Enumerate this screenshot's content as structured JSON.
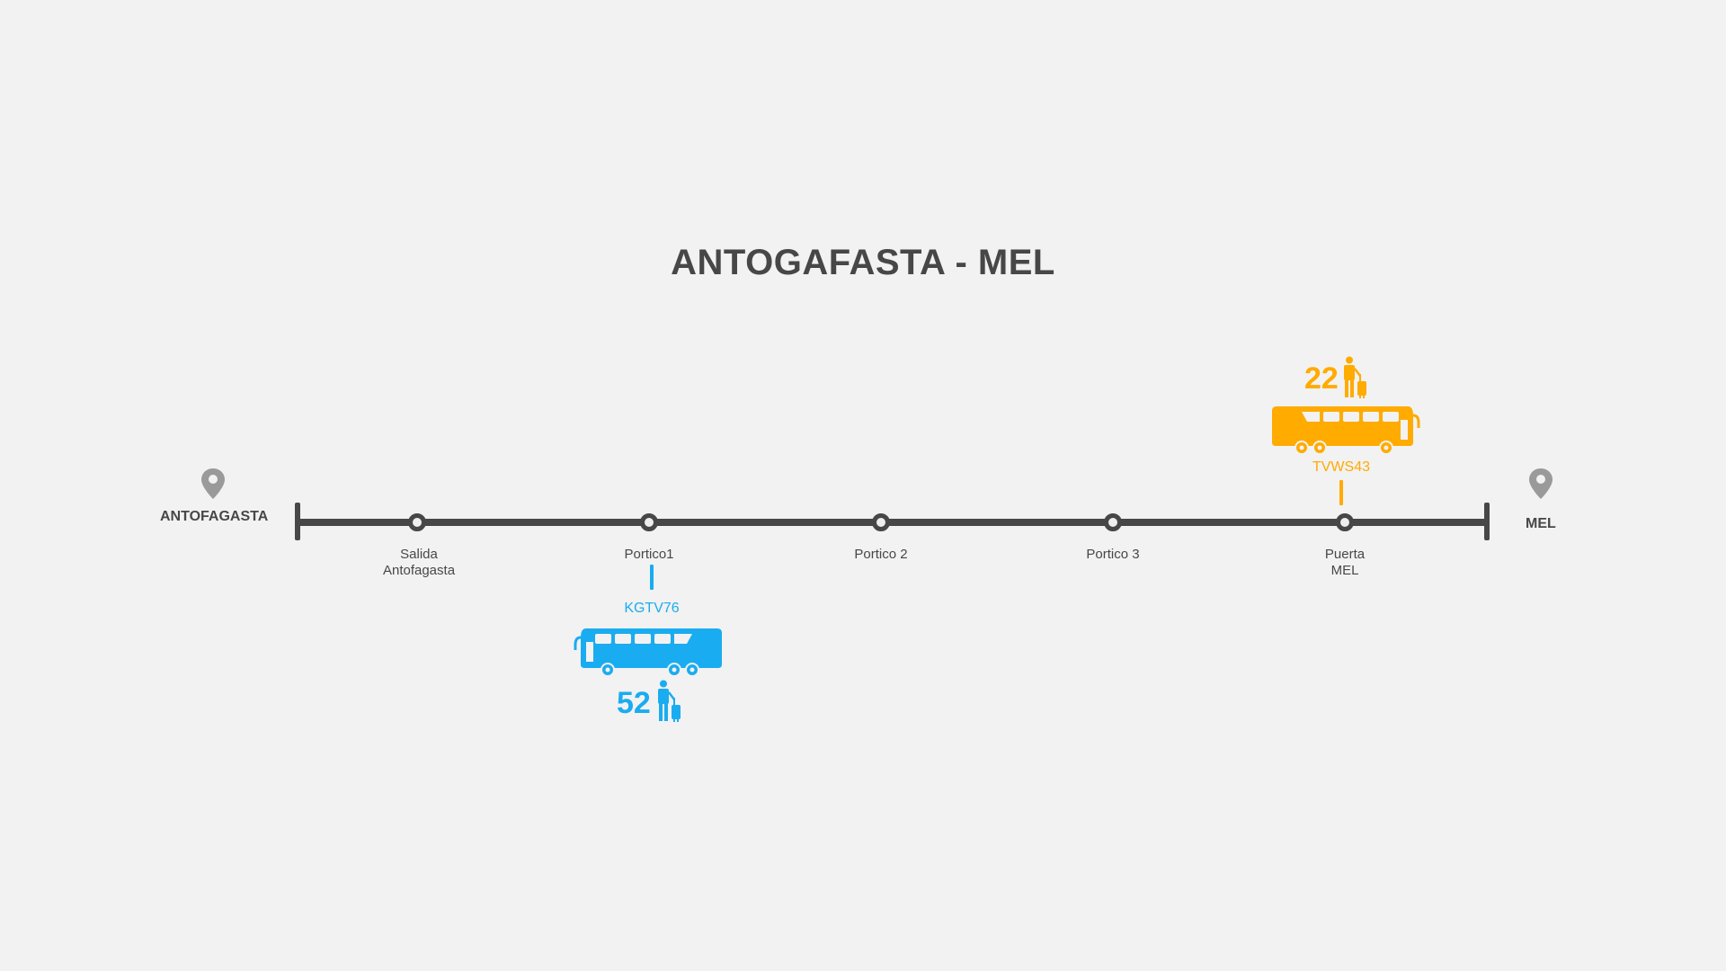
{
  "title": "ANTOGAFASTA - MEL",
  "endpoints": {
    "origin": {
      "label": "ANTOFAGASTA",
      "icon": "location-pin-icon"
    },
    "destination": {
      "label": "MEL",
      "icon": "location-pin-icon"
    }
  },
  "stops": [
    {
      "line1": "Salida",
      "line2": "Antofagasta"
    },
    {
      "line1": "Portico1",
      "line2": ""
    },
    {
      "line1": "Portico 2",
      "line2": ""
    },
    {
      "line1": "Portico 3",
      "line2": ""
    },
    {
      "line1": "Puerta",
      "line2": "MEL"
    }
  ],
  "buses": [
    {
      "plate": "KGTV76",
      "passengers": "52",
      "color": "#1aacf0",
      "at_stop": "Portico1",
      "side": "below",
      "icon": "bus-icon"
    },
    {
      "plate": "TVWS43",
      "passengers": "22",
      "color": "#ffab00",
      "at_stop": "Puerta MEL",
      "side": "above",
      "icon": "bus-icon"
    }
  ],
  "colors": {
    "line": "#474747",
    "background": "#f2f2f2",
    "pin": "#9a9a9a"
  }
}
